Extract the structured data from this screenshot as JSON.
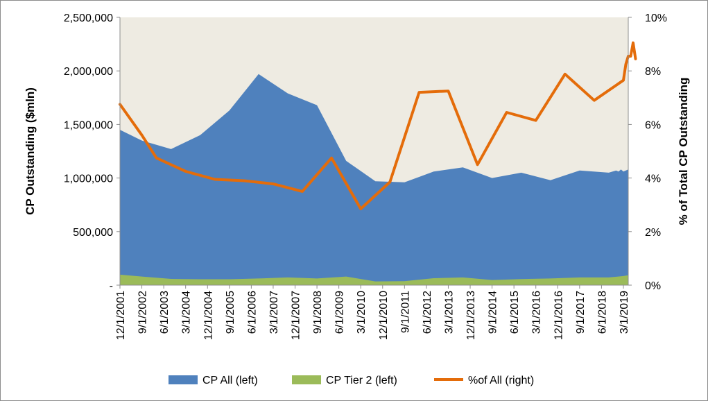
{
  "chart_data": {
    "type": "area",
    "title": "",
    "ylabel_left": "CP Outstanding ($mln)",
    "ylabel_right": "% of Total CP Outstanding",
    "ylim_left": [
      0,
      2500000
    ],
    "ylim_right": [
      0,
      10
    ],
    "yticks_left": [
      "-",
      "500,000",
      "1,000,000",
      "1,500,000",
      "2,000,000",
      "2,500,000"
    ],
    "yticks_right": [
      "0%",
      "2%",
      "4%",
      "6%",
      "8%",
      "10%"
    ],
    "xticks": [
      "12/1/2001",
      "9/1/2002",
      "6/1/2003",
      "3/1/2004",
      "12/1/2004",
      "9/1/2005",
      "6/1/2006",
      "3/1/2007",
      "12/1/2007",
      "9/1/2008",
      "6/1/2009",
      "3/1/2010",
      "12/1/2010",
      "9/1/2011",
      "6/1/2012",
      "3/1/2013",
      "12/1/2013",
      "9/1/2014",
      "6/1/2015",
      "3/1/2016",
      "12/1/2016",
      "9/1/2017",
      "6/1/2018",
      "3/1/2019"
    ],
    "x_range": [
      "2001-12-01",
      "2019-05-01"
    ],
    "legend_position": "bottom",
    "grid": false,
    "plot_background": "#EEEBE2",
    "series": [
      {
        "name": "CP All (left)",
        "kind": "area",
        "axis": "left",
        "color": "#4F81BD",
        "points": [
          [
            "2001-12-01",
            1450000
          ],
          [
            "2002-09-01",
            1350000
          ],
          [
            "2003-09-01",
            1270000
          ],
          [
            "2004-09-01",
            1400000
          ],
          [
            "2005-09-01",
            1630000
          ],
          [
            "2006-09-01",
            1970000
          ],
          [
            "2007-09-01",
            1790000
          ],
          [
            "2008-09-01",
            1680000
          ],
          [
            "2009-09-01",
            1160000
          ],
          [
            "2010-09-01",
            970000
          ],
          [
            "2011-09-01",
            960000
          ],
          [
            "2012-09-01",
            1060000
          ],
          [
            "2013-09-01",
            1100000
          ],
          [
            "2014-09-01",
            1000000
          ],
          [
            "2015-09-01",
            1050000
          ],
          [
            "2016-09-01",
            980000
          ],
          [
            "2017-09-01",
            1070000
          ],
          [
            "2018-09-01",
            1050000
          ],
          [
            "2018-12-01",
            1070000
          ],
          [
            "2019-01-01",
            1060000
          ],
          [
            "2019-02-01",
            1080000
          ],
          [
            "2019-03-01",
            1060000
          ],
          [
            "2019-04-01",
            1070000
          ],
          [
            "2019-05-01",
            1080000
          ]
        ]
      },
      {
        "name": "CP Tier 2 (left)",
        "kind": "area",
        "axis": "left",
        "color": "#9BBB59",
        "points": [
          [
            "2001-12-01",
            98000
          ],
          [
            "2002-09-01",
            80000
          ],
          [
            "2003-09-01",
            58000
          ],
          [
            "2004-09-01",
            55000
          ],
          [
            "2005-09-01",
            55000
          ],
          [
            "2006-09-01",
            62000
          ],
          [
            "2007-09-01",
            72000
          ],
          [
            "2008-09-01",
            62000
          ],
          [
            "2009-09-01",
            80000
          ],
          [
            "2010-09-01",
            35000
          ],
          [
            "2011-09-01",
            37000
          ],
          [
            "2012-09-01",
            65000
          ],
          [
            "2013-09-01",
            72000
          ],
          [
            "2014-09-01",
            48000
          ],
          [
            "2015-09-01",
            57000
          ],
          [
            "2016-09-01",
            62000
          ],
          [
            "2017-09-01",
            72000
          ],
          [
            "2018-09-01",
            72000
          ],
          [
            "2019-03-01",
            85000
          ],
          [
            "2019-05-01",
            92000
          ]
        ]
      },
      {
        "name": "%of All (right)",
        "kind": "line",
        "axis": "right",
        "color": "#E46C0A",
        "points": [
          [
            "2001-12-01",
            6.75
          ],
          [
            "2002-09-01",
            5.6
          ],
          [
            "2003-03-01",
            4.75
          ],
          [
            "2004-03-01",
            4.25
          ],
          [
            "2005-03-01",
            3.95
          ],
          [
            "2006-03-01",
            3.9
          ],
          [
            "2007-03-01",
            3.78
          ],
          [
            "2008-03-01",
            3.5
          ],
          [
            "2009-03-01",
            4.75
          ],
          [
            "2010-03-01",
            2.85
          ],
          [
            "2011-03-01",
            3.85
          ],
          [
            "2012-03-01",
            7.2
          ],
          [
            "2013-03-01",
            7.25
          ],
          [
            "2014-03-01",
            4.5
          ],
          [
            "2015-03-01",
            6.45
          ],
          [
            "2016-03-01",
            6.15
          ],
          [
            "2017-03-01",
            7.88
          ],
          [
            "2018-03-01",
            6.9
          ],
          [
            "2019-03-01",
            7.65
          ],
          [
            "2019-04-01",
            8.25
          ],
          [
            "2019-05-01",
            8.55
          ],
          [
            "2019-06-01",
            8.55
          ],
          [
            "2019-07-01",
            9.05
          ],
          [
            "2019-08-01",
            8.45
          ]
        ]
      }
    ]
  }
}
